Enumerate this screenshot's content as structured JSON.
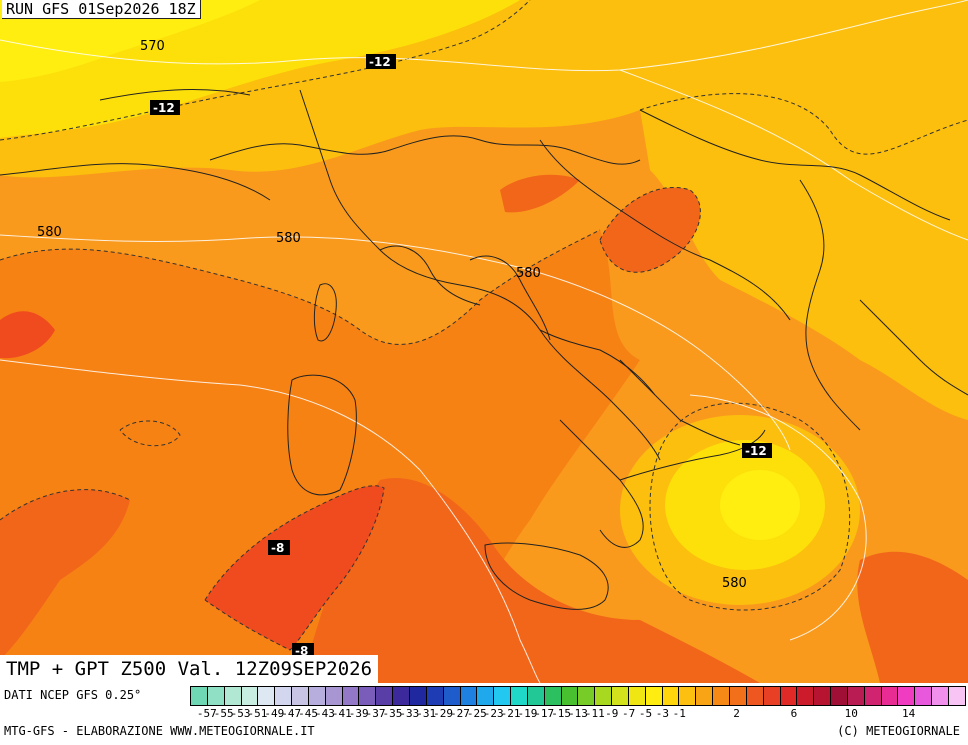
{
  "header": {
    "run_title": "RUN GFS 01Sep2026 18Z"
  },
  "footer": {
    "valid_title": "TMP + GPT Z500 Val. 12Z09SEP2026",
    "source": "DATI NCEP GFS 0.25°",
    "credit_left": "MTG-GFS - ELABORAZIONE WWW.METEOGIORNALE.IT",
    "credit_right": "(C) METEOGIORNALE"
  },
  "map_labels": {
    "gpt_570": "570",
    "gpt_580_west": "580",
    "gpt_580_center": "580",
    "gpt_580_italy": "580",
    "gpt_580_south": "580",
    "tmp_m12_nw": "-12",
    "tmp_m12_alps": "-12",
    "tmp_m12_se": "-12",
    "tmp_m8_a": "-8",
    "tmp_m8_b": "-8"
  },
  "colors": {
    "sea_orange": "#f99a1c",
    "warm_orange": "#f78214",
    "deep_orange": "#f2661a",
    "red_orange": "#ef4b1e",
    "yellow_orange": "#fcbf0e",
    "yellow": "#fde00a",
    "bright_yellow": "#ffee10"
  },
  "scale": {
    "labels": [
      "-57",
      "-55",
      "-53",
      "-51",
      "-49",
      "-47",
      "-45",
      "-43",
      "-41",
      "-39",
      "-37",
      "-35",
      "-33",
      "-31",
      "-29",
      "-27",
      "-25",
      "-23",
      "-21",
      "-19",
      "-17",
      "-15",
      "-13",
      "-11",
      "-9",
      "-7",
      "-5",
      "-3",
      "-1",
      "2",
      "6",
      "10",
      "14"
    ],
    "colors": [
      "#6fd7b4",
      "#8fe0c4",
      "#b0e8d4",
      "#c8eee2",
      "#dde8f2",
      "#d2d6ee",
      "#c8c4e6",
      "#b8aedd",
      "#a896d2",
      "#9278c6",
      "#7a5cba",
      "#5a3ea8",
      "#3c2a9c",
      "#2028a0",
      "#1e3cb4",
      "#1e5ccc",
      "#1e80e0",
      "#20a8ec",
      "#22c8f0",
      "#20d8c8",
      "#22c896",
      "#2cc060",
      "#48c030",
      "#78cc28",
      "#a8d820",
      "#d2e21c",
      "#f0e614",
      "#ffec10",
      "#ffd60c",
      "#fdbf10",
      "#f9a414",
      "#f78a16",
      "#f2701a",
      "#ee5820",
      "#e84024",
      "#e02a28",
      "#cc1c2c",
      "#b61430",
      "#a01036",
      "#b81c52",
      "#d02470",
      "#e82c94",
      "#f03cc0",
      "#e858dc",
      "#f090ec",
      "#f8c4f4"
    ]
  }
}
